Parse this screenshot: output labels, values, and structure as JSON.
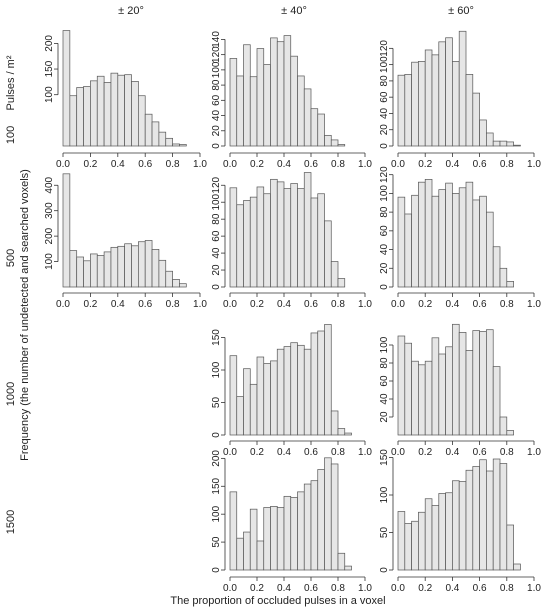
{
  "col_headers": [
    "± 20°",
    "± 40°",
    "± 60°"
  ],
  "row_headers": [
    "100",
    "500",
    "1000",
    "1500"
  ],
  "row_unit": "Pulses / m²",
  "ylabel": "Frequency (the number of undetected and searched voxels)",
  "xlabel": "The proportion of occluded pulses in a voxel",
  "colors": {
    "bar_fill": "#e6e6e6",
    "bar_stroke": "#555555",
    "axis": "#333333"
  },
  "chart_data": [
    {
      "type": "bar",
      "row": 0,
      "col": 0,
      "xlim": [
        0,
        1.0
      ],
      "ylim": [
        0,
        230
      ],
      "yticks": [
        100,
        150,
        200
      ],
      "xticks": [
        0.0,
        0.2,
        0.4,
        0.6,
        0.8,
        1.0
      ],
      "bin_width": 0.05,
      "values": [
        225,
        98,
        114,
        116,
        127,
        136,
        124,
        142,
        138,
        139,
        126,
        98,
        62,
        47,
        27,
        15,
        4,
        3
      ]
    },
    {
      "type": "bar",
      "row": 0,
      "col": 1,
      "xlim": [
        0,
        1.0
      ],
      "ylim": [
        0,
        155
      ],
      "yticks": [
        0,
        20,
        40,
        60,
        80,
        100,
        120,
        140
      ],
      "xticks": [
        0.0,
        0.2,
        0.4,
        0.6,
        0.8,
        1.0
      ],
      "bin_width": 0.05,
      "values": [
        115,
        92,
        133,
        91,
        128,
        107,
        142,
        137,
        145,
        118,
        92,
        75,
        49,
        42,
        14,
        8,
        2
      ]
    },
    {
      "type": "bar",
      "row": 0,
      "col": 2,
      "xlim": [
        0,
        1.0
      ],
      "ylim": [
        0,
        145
      ],
      "yticks": [
        0,
        20,
        40,
        60,
        80,
        100,
        120
      ],
      "xticks": [
        0.0,
        0.2,
        0.4,
        0.6,
        0.8,
        1.0
      ],
      "bin_width": 0.05,
      "values": [
        87,
        88,
        103,
        104,
        118,
        112,
        128,
        133,
        104,
        141,
        88,
        65,
        32,
        16,
        6,
        6,
        5,
        1
      ]
    },
    {
      "type": "bar",
      "row": 1,
      "col": 0,
      "xlim": [
        0,
        1.0
      ],
      "ylim": [
        0,
        460
      ],
      "yticks": [
        100,
        200,
        300,
        400
      ],
      "xticks": [
        0.0,
        0.2,
        0.4,
        0.6,
        0.8,
        1.0
      ],
      "bin_width": 0.05,
      "values": [
        445,
        143,
        118,
        103,
        130,
        124,
        138,
        156,
        160,
        170,
        162,
        178,
        183,
        148,
        105,
        62,
        30,
        13
      ]
    },
    {
      "type": "bar",
      "row": 1,
      "col": 1,
      "xlim": [
        0,
        1.0
      ],
      "ylim": [
        0,
        138
      ],
      "yticks": [
        0,
        20,
        40,
        60,
        80,
        100,
        120
      ],
      "xticks": [
        0.0,
        0.2,
        0.4,
        0.6,
        0.8,
        1.0
      ],
      "bin_width": 0.05,
      "values": [
        117,
        97,
        102,
        106,
        118,
        110,
        127,
        124,
        116,
        122,
        116,
        135,
        105,
        110,
        78,
        30,
        10
      ]
    },
    {
      "type": "bar",
      "row": 1,
      "col": 2,
      "xlim": [
        0,
        1.0
      ],
      "ylim": [
        0,
        125
      ],
      "yticks": [
        0,
        20,
        40,
        60,
        80,
        100,
        120
      ],
      "xticks": [
        0.0,
        0.2,
        0.4,
        0.6,
        0.8,
        1.0
      ],
      "bin_width": 0.05,
      "values": [
        96,
        78,
        98,
        112,
        115,
        97,
        104,
        111,
        100,
        106,
        112,
        93,
        97,
        80,
        43,
        20,
        6
      ]
    },
    {
      "type": "bar",
      "row": 2,
      "col": 1,
      "xlim": [
        0,
        1.0
      ],
      "ylim": [
        0,
        180
      ],
      "yticks": [
        0,
        50,
        100,
        150
      ],
      "xticks": [
        0.0,
        0.2,
        0.4,
        0.6,
        0.8,
        1.0
      ],
      "bin_width": 0.05,
      "values": [
        122,
        59,
        102,
        78,
        120,
        110,
        114,
        132,
        136,
        142,
        138,
        132,
        157,
        160,
        170,
        37,
        10,
        3
      ]
    },
    {
      "type": "bar",
      "row": 2,
      "col": 2,
      "xlim": [
        0,
        1.0
      ],
      "ylim": [
        0,
        130
      ],
      "yticks": [
        20,
        40,
        60,
        80,
        100
      ],
      "xticks": [
        0.0,
        0.2,
        0.4,
        0.6,
        0.8,
        1.0
      ],
      "bin_width": 0.05,
      "values": [
        110,
        102,
        82,
        78,
        82,
        108,
        90,
        98,
        123,
        114,
        94,
        116,
        115,
        117,
        76,
        20,
        5
      ]
    },
    {
      "type": "bar",
      "row": 3,
      "col": 1,
      "xlim": [
        0,
        1.0
      ],
      "ylim": [
        0,
        215
      ],
      "yticks": [
        0,
        50,
        100,
        150,
        200
      ],
      "xticks": [
        0.0,
        0.2,
        0.4,
        0.6,
        0.8,
        1.0
      ],
      "bin_width": 0.05,
      "values": [
        140,
        57,
        68,
        109,
        52,
        112,
        114,
        112,
        132,
        130,
        140,
        154,
        160,
        180,
        201,
        190,
        30,
        7
      ]
    },
    {
      "type": "bar",
      "row": 3,
      "col": 2,
      "xlim": [
        0,
        1.0
      ],
      "ylim": [
        0,
        160
      ],
      "yticks": [
        0,
        50,
        100,
        150
      ],
      "xticks": [
        0.0,
        0.2,
        0.4,
        0.6,
        0.8,
        1.0
      ],
      "bin_width": 0.05,
      "values": [
        78,
        62,
        65,
        77,
        95,
        86,
        102,
        103,
        119,
        118,
        133,
        138,
        147,
        132,
        148,
        142,
        60,
        8
      ]
    }
  ]
}
